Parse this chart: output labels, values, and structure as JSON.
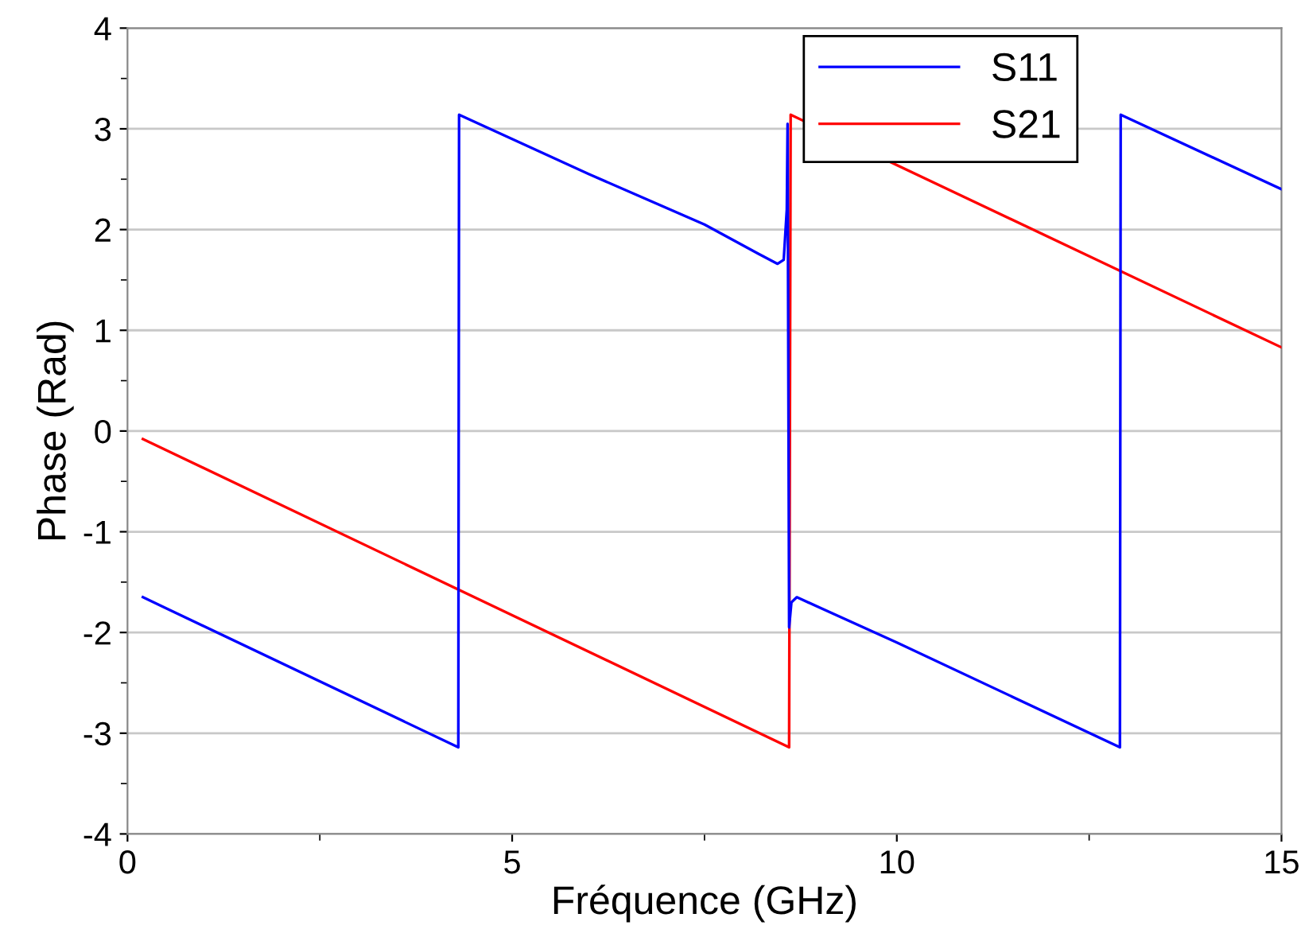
{
  "chart_data": {
    "type": "line",
    "xlabel": "Fréquence (GHz)",
    "ylabel": "Phase (Rad)",
    "xlim": [
      0,
      15
    ],
    "xticks": [
      0,
      5,
      10,
      15
    ],
    "ylim": [
      -4,
      4
    ],
    "yticks": [
      -4,
      -3,
      -2,
      -1,
      0,
      1,
      2,
      3,
      4
    ],
    "grid": "y",
    "legend": "top right",
    "line_style": "solid",
    "marker": "none",
    "series": [
      {
        "name": "S11",
        "color": "#0000ff",
        "x": [
          0.2,
          4.3,
          4.31,
          6,
          7.5,
          8.2,
          8.45,
          8.53,
          8.57,
          8.58,
          8.6,
          8.63,
          8.7,
          10,
          12.9,
          12.91,
          15
        ],
        "values": [
          -1.65,
          -3.14,
          3.14,
          2.55,
          2.05,
          1.76,
          1.66,
          1.7,
          2.2,
          3.05,
          -1.95,
          -1.7,
          -1.65,
          -2.1,
          -3.14,
          3.14,
          2.4
        ]
      },
      {
        "name": "S21",
        "color": "#ff0000",
        "x": [
          0.2,
          8.6,
          8.62,
          15
        ],
        "values": [
          -0.08,
          -3.14,
          3.14,
          0.83
        ]
      }
    ]
  }
}
